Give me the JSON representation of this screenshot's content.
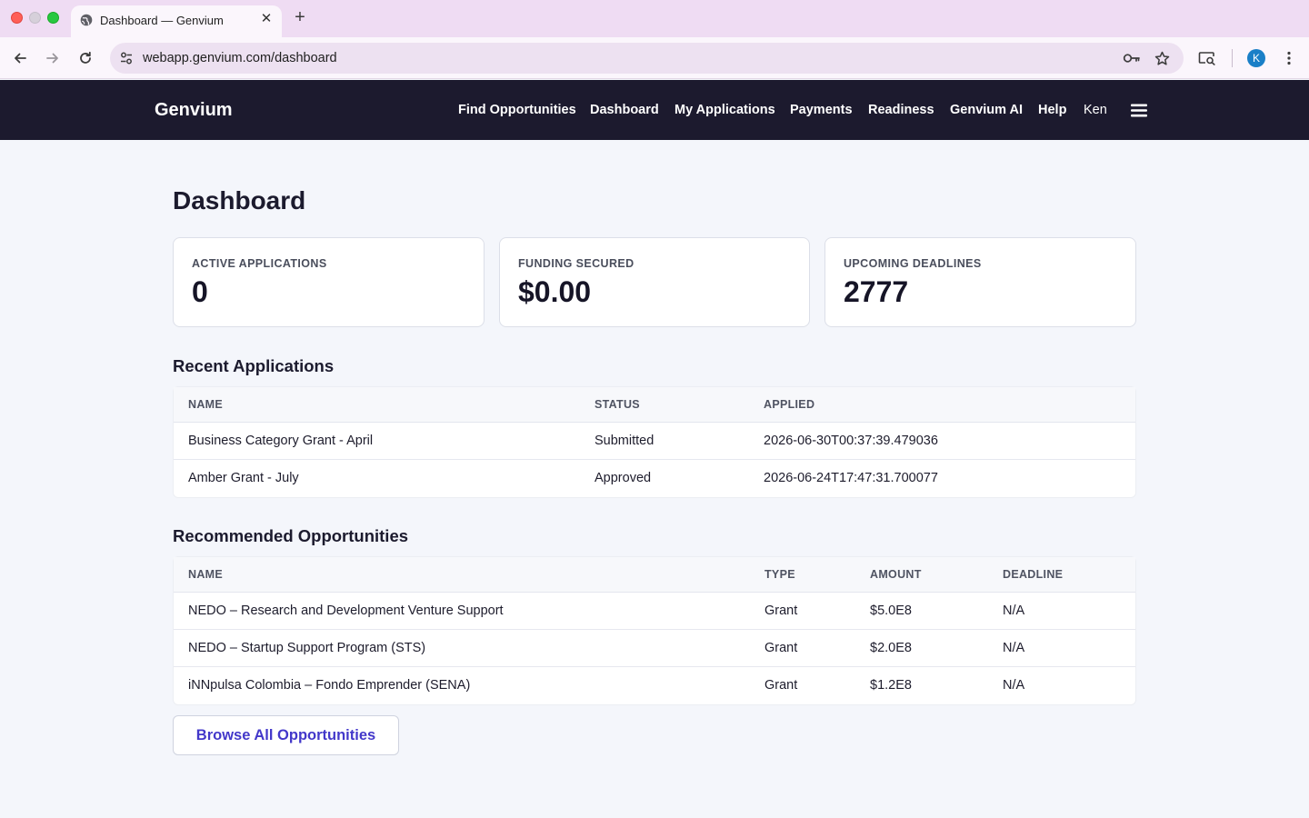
{
  "browser": {
    "tab_title": "Dashboard — Genvium",
    "url": "webapp.genvium.com/dashboard",
    "avatar_initial": "K"
  },
  "header": {
    "brand": "Genvium",
    "nav": [
      {
        "label": "Find Opportunities"
      },
      {
        "label": "Dashboard"
      },
      {
        "label": "My Applications"
      },
      {
        "label": "Payments"
      },
      {
        "label": "Readiness"
      },
      {
        "label": "Genvium AI"
      },
      {
        "label": "Help"
      }
    ],
    "user_name": "Ken"
  },
  "main": {
    "title": "Dashboard",
    "stats": [
      {
        "label": "ACTIVE APPLICATIONS",
        "value": "0"
      },
      {
        "label": "FUNDING SECURED",
        "value": "$0.00"
      },
      {
        "label": "UPCOMING DEADLINES",
        "value": "2777"
      }
    ],
    "recent_applications": {
      "title": "Recent Applications",
      "columns": [
        "NAME",
        "STATUS",
        "APPLIED"
      ],
      "rows": [
        {
          "name": "Business Category Grant - April",
          "status": "Submitted",
          "applied": "2026-06-30T00:37:39.479036"
        },
        {
          "name": "Amber Grant - July",
          "status": "Approved",
          "applied": "2026-06-24T17:47:31.700077"
        }
      ]
    },
    "recommended": {
      "title": "Recommended Opportunities",
      "columns": [
        "NAME",
        "TYPE",
        "AMOUNT",
        "DEADLINE"
      ],
      "rows": [
        {
          "name": "NEDO – Research and Development Venture Support",
          "type": "Grant",
          "amount": "$5.0E8",
          "deadline": "N/A"
        },
        {
          "name": "NEDO – Startup Support Program (STS)",
          "type": "Grant",
          "amount": "$2.0E8",
          "deadline": "N/A"
        },
        {
          "name": "iNNpulsa Colombia – Fondo Emprender (SENA)",
          "type": "Grant",
          "amount": "$1.2E8",
          "deadline": "N/A"
        }
      ]
    },
    "browse_button": "Browse All Opportunities"
  },
  "colors": {
    "header_bg": "#1c1a2e",
    "page_bg": "#f4f6fb",
    "accent": "#4338ca",
    "tabbar_bg": "#efdcf3"
  }
}
